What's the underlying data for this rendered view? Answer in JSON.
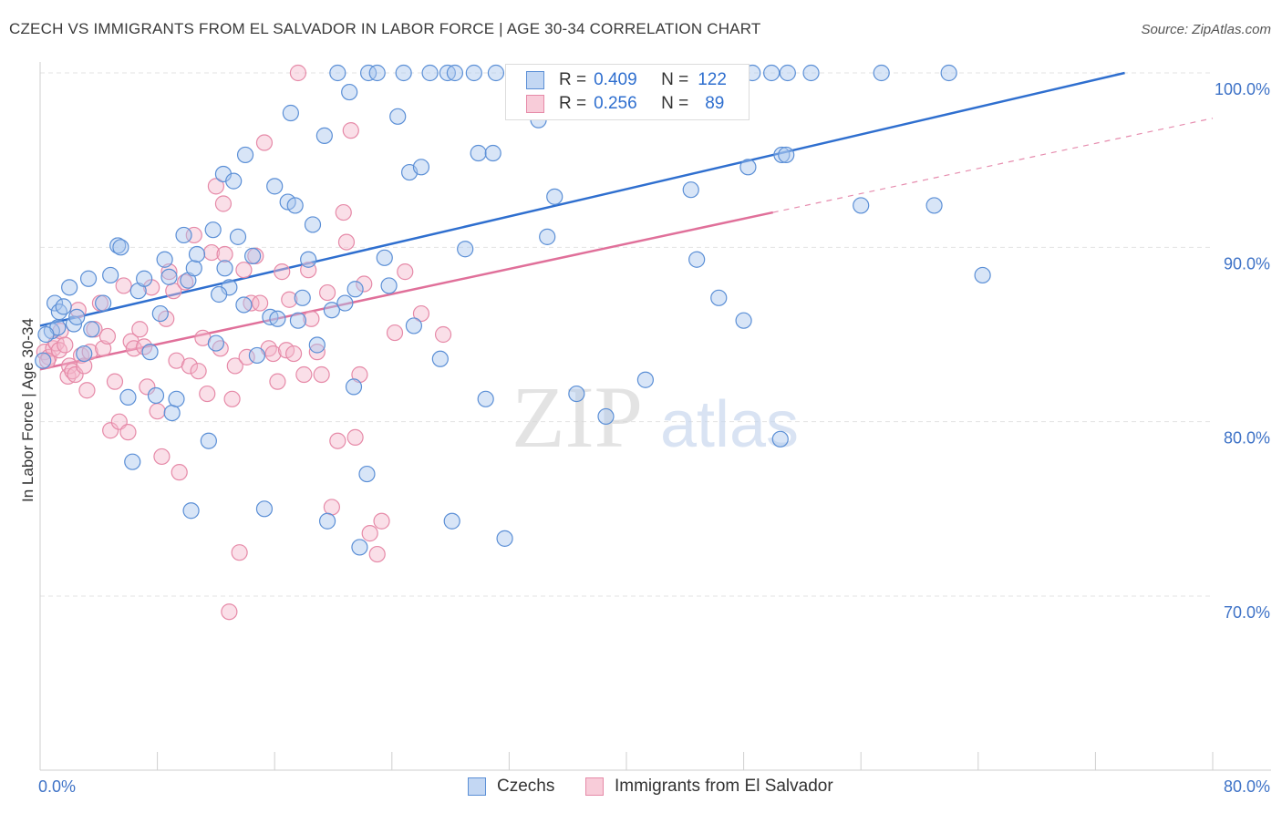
{
  "title": "CZECH VS IMMIGRANTS FROM EL SALVADOR IN LABOR FORCE | AGE 30-34 CORRELATION CHART",
  "source": "Source: ZipAtlas.com",
  "watermark": {
    "zip": "ZIP",
    "atlas": "atlas"
  },
  "legend": {
    "rows": [
      {
        "r_label": "R =",
        "r_value": "0.409",
        "n_label": "N =",
        "n_value": "122"
      },
      {
        "r_label": "R =",
        "r_value": "0.256",
        "n_label": "N =",
        "n_value": "89"
      }
    ]
  },
  "colors": {
    "blue_fill": "#a9c6ee",
    "blue_stroke": "#5b8fd6",
    "blue_line": "#2f6fcf",
    "pink_fill": "#f5b8cb",
    "pink_stroke": "#e68aa8",
    "pink_line": "#e0709a",
    "tick_text": "#3f73c7",
    "grid": "#e3e3e3"
  },
  "chart_data": {
    "type": "scatter",
    "title": "CZECH VS IMMIGRANTS FROM EL SALVADOR IN LABOR FORCE | AGE 30-34 CORRELATION CHART",
    "xlabel": "",
    "ylabel": "In Labor Force | Age 30-34",
    "xlim": [
      0,
      80
    ],
    "ylim": [
      60,
      101.5
    ],
    "x_tick_labels": [
      "0.0%",
      "80.0%"
    ],
    "y_ticks": [
      70,
      80,
      90,
      100
    ],
    "y_tick_labels": [
      "70.0%",
      "80.0%",
      "90.0%",
      "100.0%"
    ],
    "grid": true,
    "legend_position": "top-center",
    "series": [
      {
        "name": "Czechs",
        "r": 0.409,
        "n": 122,
        "trend": {
          "x0": 0,
          "y0": 85.5,
          "x1": 74,
          "y1": 100.0
        },
        "points": [
          [
            0.2,
            83.5
          ],
          [
            0.8,
            85.2
          ],
          [
            1.0,
            86.8
          ],
          [
            1.2,
            85.4
          ],
          [
            1.3,
            86.3
          ],
          [
            1.6,
            86.6
          ],
          [
            2.0,
            87.7
          ],
          [
            2.3,
            85.6
          ],
          [
            2.5,
            86.0
          ],
          [
            3.3,
            88.2
          ],
          [
            3.5,
            85.3
          ],
          [
            4.3,
            86.8
          ],
          [
            4.8,
            88.4
          ],
          [
            5.3,
            90.1
          ],
          [
            5.5,
            90.0
          ],
          [
            6.0,
            81.4
          ],
          [
            6.3,
            77.7
          ],
          [
            6.7,
            87.5
          ],
          [
            7.1,
            88.2
          ],
          [
            7.5,
            84.0
          ],
          [
            7.9,
            81.5
          ],
          [
            8.2,
            86.2
          ],
          [
            8.5,
            89.3
          ],
          [
            8.8,
            88.3
          ],
          [
            9.0,
            80.5
          ],
          [
            9.3,
            81.3
          ],
          [
            9.8,
            90.7
          ],
          [
            10.1,
            88.1
          ],
          [
            10.3,
            74.9
          ],
          [
            10.5,
            88.8
          ],
          [
            10.7,
            89.6
          ],
          [
            11.5,
            78.9
          ],
          [
            11.8,
            91.0
          ],
          [
            12.0,
            84.5
          ],
          [
            12.5,
            94.2
          ],
          [
            12.6,
            88.8
          ],
          [
            12.9,
            87.7
          ],
          [
            13.2,
            93.8
          ],
          [
            13.5,
            90.6
          ],
          [
            13.9,
            86.7
          ],
          [
            14.0,
            95.3
          ],
          [
            14.5,
            89.5
          ],
          [
            14.8,
            83.8
          ],
          [
            15.3,
            75.0
          ],
          [
            15.7,
            86.0
          ],
          [
            16.0,
            93.5
          ],
          [
            16.2,
            85.9
          ],
          [
            16.9,
            92.6
          ],
          [
            17.1,
            97.7
          ],
          [
            17.4,
            92.4
          ],
          [
            17.6,
            85.8
          ],
          [
            17.9,
            87.1
          ],
          [
            18.3,
            89.3
          ],
          [
            18.6,
            91.3
          ],
          [
            18.9,
            84.4
          ],
          [
            19.4,
            96.4
          ],
          [
            19.6,
            74.3
          ],
          [
            19.9,
            86.4
          ],
          [
            20.3,
            100.0
          ],
          [
            20.8,
            86.8
          ],
          [
            21.1,
            98.9
          ],
          [
            21.4,
            82.0
          ],
          [
            21.8,
            72.8
          ],
          [
            22.3,
            77.0
          ],
          [
            22.4,
            100.0
          ],
          [
            23.0,
            100.0
          ],
          [
            23.5,
            89.4
          ],
          [
            23.8,
            87.8
          ],
          [
            24.4,
            97.5
          ],
          [
            24.8,
            100.0
          ],
          [
            25.2,
            94.3
          ],
          [
            25.5,
            85.5
          ],
          [
            26.0,
            94.6
          ],
          [
            26.6,
            100.0
          ],
          [
            27.3,
            83.6
          ],
          [
            27.8,
            100.0
          ],
          [
            28.1,
            74.3
          ],
          [
            28.3,
            100.0
          ],
          [
            29.6,
            100.0
          ],
          [
            29.9,
            95.4
          ],
          [
            30.4,
            81.3
          ],
          [
            30.9,
            95.4
          ],
          [
            31.1,
            100.0
          ],
          [
            31.7,
            73.3
          ],
          [
            32.3,
            100.0
          ],
          [
            33.0,
            100.0
          ],
          [
            33.6,
            100.0
          ],
          [
            34.0,
            97.3
          ],
          [
            34.3,
            100.0
          ],
          [
            34.6,
            90.6
          ],
          [
            35.1,
            92.9
          ],
          [
            35.8,
            100.0
          ],
          [
            36.6,
            81.6
          ],
          [
            37.3,
            100.0
          ],
          [
            38.6,
            80.3
          ],
          [
            39.8,
            100.0
          ],
          [
            40.4,
            100.0
          ],
          [
            41.3,
            82.4
          ],
          [
            42.6,
            100.0
          ],
          [
            43.2,
            100.0
          ],
          [
            44.4,
            93.3
          ],
          [
            44.8,
            89.3
          ],
          [
            45.2,
            100.0
          ],
          [
            46.3,
            87.1
          ],
          [
            47.2,
            100.0
          ],
          [
            48.0,
            85.8
          ],
          [
            48.3,
            94.6
          ],
          [
            48.6,
            100.0
          ],
          [
            49.9,
            100.0
          ],
          [
            50.5,
            79.0
          ],
          [
            50.6,
            95.3
          ],
          [
            50.9,
            95.3
          ],
          [
            51.0,
            100.0
          ],
          [
            52.6,
            100.0
          ],
          [
            56.0,
            92.4
          ],
          [
            57.4,
            100.0
          ],
          [
            61.0,
            92.4
          ],
          [
            62.0,
            100.0
          ],
          [
            64.3,
            88.4
          ],
          [
            0.4,
            85.0
          ],
          [
            3.0,
            83.9
          ],
          [
            12.2,
            87.3
          ],
          [
            21.5,
            87.6
          ],
          [
            29.0,
            89.9
          ]
        ]
      },
      {
        "name": "Immigrants from El Salvador",
        "r": 0.256,
        "n": 89,
        "trend": {
          "x0": 0,
          "y0": 83.0,
          "x1": 50,
          "y1": 92.0
        },
        "trend_dashed": {
          "x0": 50,
          "y0": 92.0,
          "x1": 80,
          "y1": 97.4
        },
        "points": [
          [
            0.3,
            84.0
          ],
          [
            0.6,
            83.7
          ],
          [
            0.9,
            84.2
          ],
          [
            1.1,
            84.5
          ],
          [
            1.3,
            84.1
          ],
          [
            1.4,
            85.2
          ],
          [
            1.7,
            84.4
          ],
          [
            1.9,
            82.6
          ],
          [
            2.0,
            83.2
          ],
          [
            2.2,
            82.9
          ],
          [
            2.4,
            82.7
          ],
          [
            2.6,
            86.4
          ],
          [
            2.8,
            83.8
          ],
          [
            3.0,
            83.2
          ],
          [
            3.2,
            81.8
          ],
          [
            3.4,
            84.0
          ],
          [
            3.7,
            85.3
          ],
          [
            4.1,
            86.8
          ],
          [
            4.3,
            84.2
          ],
          [
            4.6,
            84.9
          ],
          [
            4.8,
            79.5
          ],
          [
            5.1,
            82.3
          ],
          [
            5.4,
            80.0
          ],
          [
            5.7,
            87.8
          ],
          [
            6.0,
            79.4
          ],
          [
            6.2,
            84.6
          ],
          [
            6.4,
            84.2
          ],
          [
            6.8,
            85.3
          ],
          [
            7.1,
            84.3
          ],
          [
            7.3,
            82.0
          ],
          [
            7.6,
            87.7
          ],
          [
            8.0,
            80.6
          ],
          [
            8.3,
            78.0
          ],
          [
            8.6,
            85.9
          ],
          [
            8.8,
            88.6
          ],
          [
            9.1,
            87.5
          ],
          [
            9.3,
            83.5
          ],
          [
            9.5,
            77.1
          ],
          [
            9.9,
            88.0
          ],
          [
            10.2,
            83.2
          ],
          [
            10.5,
            90.7
          ],
          [
            10.8,
            82.9
          ],
          [
            11.1,
            84.8
          ],
          [
            11.4,
            81.6
          ],
          [
            11.7,
            89.7
          ],
          [
            12.0,
            93.5
          ],
          [
            12.3,
            84.2
          ],
          [
            12.6,
            89.6
          ],
          [
            12.9,
            69.1
          ],
          [
            13.1,
            81.3
          ],
          [
            13.3,
            83.2
          ],
          [
            13.6,
            72.5
          ],
          [
            13.9,
            88.7
          ],
          [
            14.1,
            83.7
          ],
          [
            14.4,
            86.8
          ],
          [
            14.7,
            89.5
          ],
          [
            15.0,
            86.8
          ],
          [
            15.3,
            96.0
          ],
          [
            15.6,
            84.2
          ],
          [
            15.9,
            83.9
          ],
          [
            16.2,
            82.3
          ],
          [
            16.5,
            88.6
          ],
          [
            16.8,
            84.1
          ],
          [
            17.0,
            87.0
          ],
          [
            17.3,
            83.9
          ],
          [
            17.6,
            100.0
          ],
          [
            18.0,
            82.7
          ],
          [
            18.3,
            88.7
          ],
          [
            18.5,
            85.9
          ],
          [
            18.9,
            84.0
          ],
          [
            19.2,
            82.7
          ],
          [
            19.6,
            87.4
          ],
          [
            19.9,
            75.1
          ],
          [
            20.3,
            78.9
          ],
          [
            20.7,
            92.0
          ],
          [
            20.9,
            90.3
          ],
          [
            21.2,
            96.7
          ],
          [
            21.5,
            79.1
          ],
          [
            21.8,
            82.7
          ],
          [
            22.1,
            87.9
          ],
          [
            22.5,
            73.6
          ],
          [
            23.0,
            72.4
          ],
          [
            23.3,
            74.3
          ],
          [
            24.2,
            85.1
          ],
          [
            24.9,
            88.6
          ],
          [
            26.0,
            86.2
          ],
          [
            27.5,
            85.0
          ],
          [
            12.5,
            92.5
          ],
          [
            0.5,
            83.5
          ]
        ]
      }
    ]
  },
  "bottom_legend": [
    "Czechs",
    "Immigrants from El Salvador"
  ]
}
